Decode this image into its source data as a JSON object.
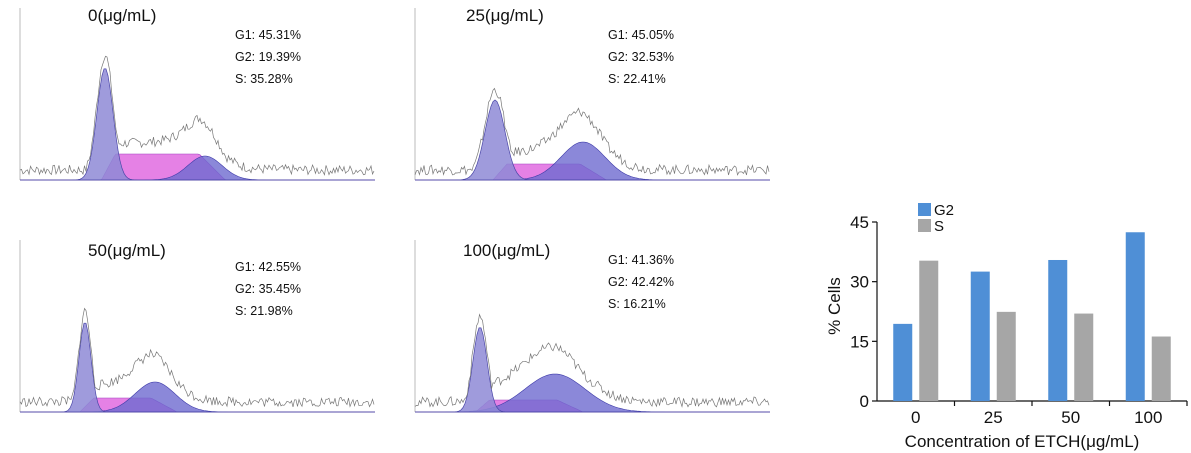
{
  "histograms": [
    {
      "conc": "0",
      "unit": "(μg/mL)",
      "stats": {
        "g1": "G1: 45.31%",
        "g2": "G2: 19.39%",
        "s": "S: 35.28%"
      }
    },
    {
      "conc": "25",
      "unit": "(μg/mL)",
      "stats": {
        "g1": "G1: 45.05%",
        "g2": "G2: 32.53%",
        "s": "S: 22.41%"
      }
    },
    {
      "conc": "50",
      "unit": "(μg/mL)",
      "stats": {
        "g1": "G1: 42.55%",
        "g2": "G2: 35.45%",
        "s": "S: 21.98%"
      }
    },
    {
      "conc": "100",
      "unit": "(μg/mL)",
      "stats": {
        "g1": "G1: 41.36%",
        "g2": "G2: 42.42%",
        "s": "S: 16.21%"
      }
    }
  ],
  "colors": {
    "g1_fill": "#8e8ad6",
    "s_fill": "#e06be0",
    "g2_fill": "#6e6ad0",
    "trace": "#777777",
    "bar_g2": "#4f8fd6",
    "bar_s": "#a6a6a6"
  },
  "chart_data": {
    "type": "bar",
    "categories": [
      "0",
      "25",
      "50",
      "100"
    ],
    "series": [
      {
        "name": "G2",
        "values": [
          19.39,
          32.53,
          35.45,
          42.42
        ]
      },
      {
        "name": "S",
        "values": [
          35.28,
          22.41,
          21.98,
          16.21
        ]
      }
    ],
    "title": "",
    "xlabel": "Concentration of ETCH(μg/mL)",
    "ylabel": "% Cells",
    "ylim": [
      0,
      45
    ],
    "yticks": [
      "0",
      "15",
      "30",
      "45"
    ],
    "legend": "top-left",
    "grid": false
  }
}
